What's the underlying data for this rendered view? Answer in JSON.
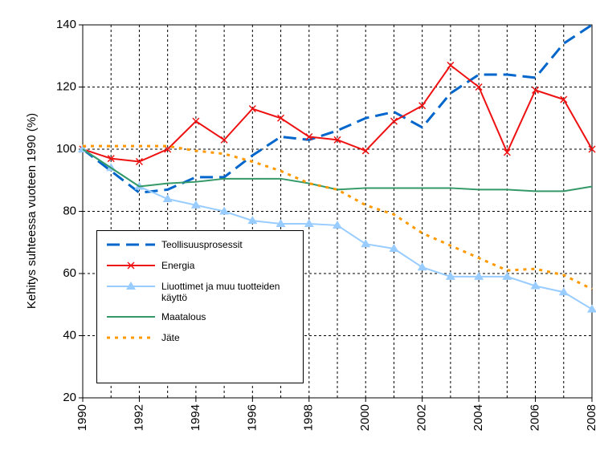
{
  "chart_data": {
    "type": "line",
    "ylabel": "Kehitys suhteessa vuoteen 1990 (%)",
    "x": [
      1990,
      1991,
      1992,
      1993,
      1994,
      1995,
      1996,
      1997,
      1998,
      1999,
      2000,
      2001,
      2002,
      2003,
      2004,
      2005,
      2006,
      2007,
      2008
    ],
    "xlim": [
      1990,
      2008
    ],
    "xticks": [
      1990,
      1992,
      1994,
      1996,
      1998,
      2000,
      2002,
      2004,
      2006,
      2008
    ],
    "ylim": [
      20,
      140
    ],
    "yticks": [
      20,
      40,
      60,
      80,
      100,
      120,
      140
    ],
    "grid": true,
    "series": [
      {
        "name": "Teollisuusprosessit",
        "color": "#0066cc",
        "style": "dashed",
        "values": [
          100,
          93,
          86,
          87,
          91,
          91,
          98,
          104,
          103,
          106,
          110,
          112,
          107,
          118,
          124,
          124,
          123,
          134,
          140
        ]
      },
      {
        "name": "Energia",
        "color": "#ee1111",
        "style": "solid",
        "marker": "x",
        "values": [
          100,
          97,
          96,
          100,
          109,
          103,
          113,
          110,
          104,
          103,
          99.5,
          109,
          114,
          127,
          120,
          99,
          119,
          116,
          100
        ]
      },
      {
        "name": "Liuottimet ja muu tuotteiden käyttö",
        "color": "#99ccff",
        "style": "solid",
        "marker": "triangle",
        "values": [
          100,
          94,
          88,
          84,
          82,
          80,
          77,
          76,
          76,
          75.5,
          69.5,
          68,
          62,
          59,
          59,
          59,
          56,
          54,
          48.5
        ]
      },
      {
        "name": "Maatalous",
        "color": "#339966",
        "style": "solid",
        "values": [
          100,
          94,
          88,
          89,
          89.5,
          90.5,
          90.5,
          90.5,
          89,
          87,
          87.5,
          87.5,
          87.5,
          87.5,
          87,
          87,
          86.5,
          86.5,
          88
        ]
      },
      {
        "name": "Jäte",
        "color": "#ff9900",
        "style": "dotted",
        "values": [
          101,
          101,
          101,
          101,
          99.5,
          98.5,
          96,
          93,
          89,
          87,
          82,
          79,
          73,
          69,
          65,
          61,
          61.5,
          59.5,
          55
        ]
      }
    ]
  }
}
